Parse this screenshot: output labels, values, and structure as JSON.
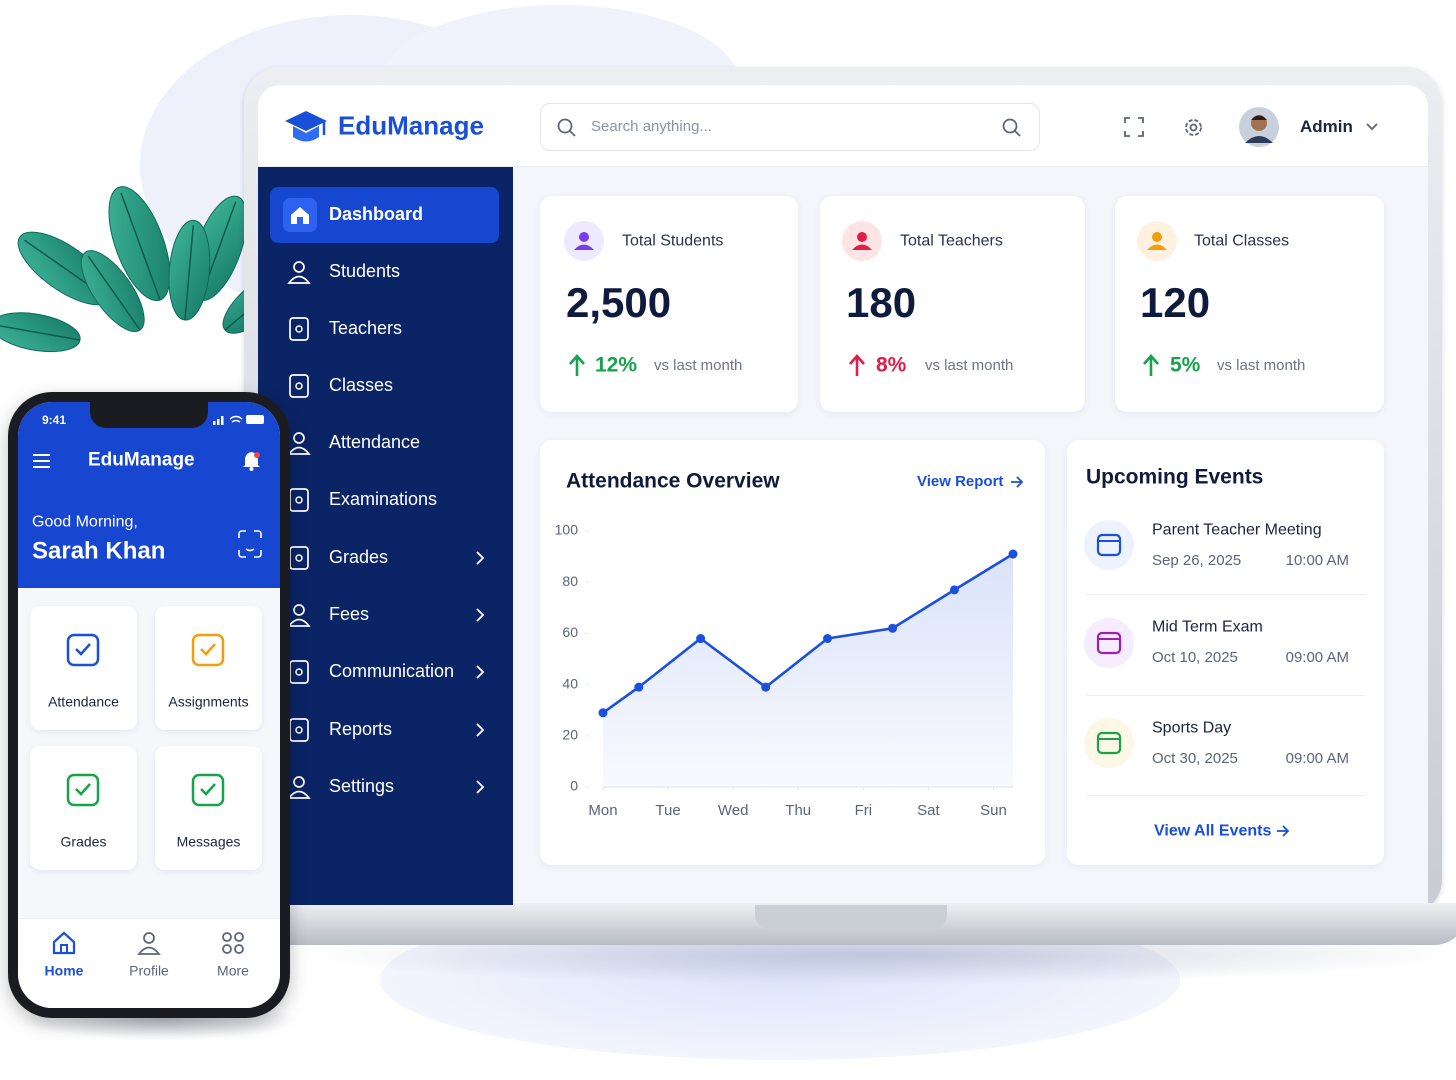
{
  "header": {
    "brand": "EduManage",
    "search_placeholder": "Search anything...",
    "user": "Admin"
  },
  "sidebar": {
    "items": [
      "Dashboard",
      "Students",
      "Teachers",
      "Classes",
      "Attendance",
      "Examinations",
      "Grades",
      "Fees",
      "Communication",
      "Reports",
      "Settings"
    ]
  },
  "stats": [
    {
      "label": "Total Students",
      "value": "2,500",
      "change": "12%",
      "note": "vs last month"
    },
    {
      "label": "Total Teachers",
      "value": "180",
      "change": "8%",
      "note": "vs last month"
    },
    {
      "label": "Total Classes",
      "value": "120",
      "change": "5%",
      "note": "vs last month"
    }
  ],
  "chart_data": {
    "type": "line",
    "title": "Attendance Overview",
    "link": "View Report",
    "x": [
      0,
      0.55,
      1.5,
      2.5,
      3.45,
      4.45,
      5.4,
      6.3
    ],
    "values": [
      29,
      39,
      58,
      39,
      58,
      62,
      77,
      91
    ],
    "color": "#1a4fe0",
    "xlim": [
      0,
      6.3
    ],
    "xticks": [
      {
        "value": 0,
        "label": "Mon"
      },
      {
        "value": 1,
        "label": "Tue"
      },
      {
        "value": 2,
        "label": "Wed"
      },
      {
        "value": 3,
        "label": "Thu"
      },
      {
        "value": 4,
        "label": "Fri"
      },
      {
        "value": 5,
        "label": "Sat"
      },
      {
        "value": 6,
        "label": "Sun"
      }
    ],
    "ylim": [
      0,
      100
    ],
    "yticks": [
      0,
      20,
      40,
      60,
      80,
      100
    ],
    "grid": false
  },
  "events": {
    "title": "Upcoming Events",
    "items": [
      {
        "title": "Parent Teacher Meeting",
        "date": "Sep 26, 2025",
        "time": "10:00 AM"
      },
      {
        "title": "Mid Term Exam",
        "date": "Oct 10, 2025",
        "time": "09:00 AM"
      },
      {
        "title": "Sports Day",
        "date": "Oct 30, 2025",
        "time": "09:00 AM"
      }
    ],
    "link": "View All Events"
  },
  "mobile": {
    "time": "9:41",
    "brand": "EduManage",
    "greeting": "Good Morning,",
    "name": "Sarah Khan",
    "tiles": [
      "Attendance",
      "Assignments",
      "Grades",
      "Messages"
    ],
    "nav": [
      "Home",
      "Profile",
      "More"
    ]
  }
}
